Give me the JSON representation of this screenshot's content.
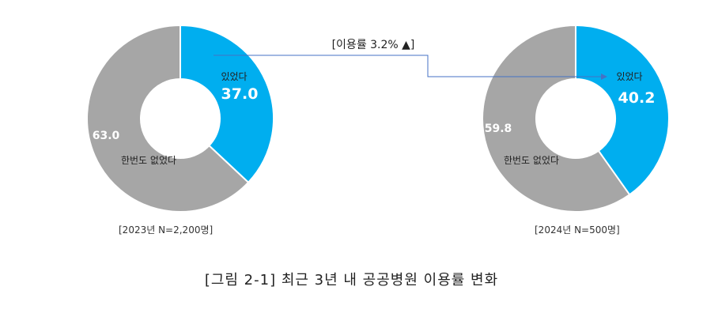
{
  "chart_data": [
    {
      "type": "donut",
      "categories": [
        "있었다",
        "한번도 없었다"
      ],
      "values": [
        37.0,
        63.0
      ],
      "value_labels": [
        "37.0",
        "63.0"
      ],
      "note": "[2023년 N=2,200명]"
    },
    {
      "type": "donut",
      "categories": [
        "있었다",
        "한번도 없었다"
      ],
      "values": [
        40.2,
        59.8
      ],
      "value_labels": [
        "40.2",
        "59.8"
      ],
      "note": "[2024년 N=500명]"
    }
  ],
  "colors": {
    "있었다": "#00AEEF",
    "한번도 없었다": "#A6A6A6",
    "arrow": "#4472C4"
  },
  "annotation": "[이용률 3.2% ▲]",
  "caption": "[그림 2-1] 최근 3년 내 공공병원 이용률 변화"
}
